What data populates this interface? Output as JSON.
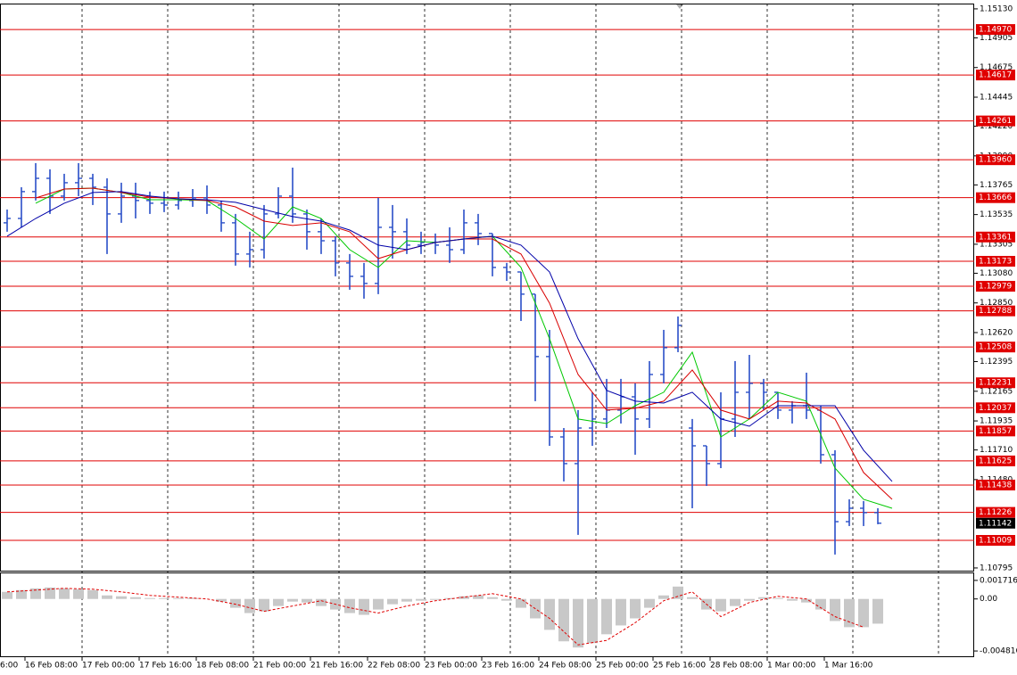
{
  "chart_data": [
    {
      "type": "candlestick",
      "color": "#2a4fc8",
      "x": [
        0,
        1,
        2,
        3,
        4,
        5,
        6,
        7,
        8,
        9,
        10,
        11,
        12,
        13,
        14,
        15,
        16,
        17,
        18,
        19,
        20,
        21,
        22,
        23,
        24,
        25,
        26,
        27,
        28,
        29,
        30,
        31,
        32,
        33,
        34,
        35,
        36,
        37,
        38,
        39,
        40,
        41,
        42,
        43,
        44,
        45,
        46,
        47,
        48,
        49,
        50,
        51,
        52,
        53,
        54,
        55,
        56,
        57,
        58,
        59,
        60,
        61
      ],
      "open": [
        1.13471,
        1.13505,
        1.13713,
        1.13816,
        1.13678,
        1.13782,
        1.13816,
        1.13747,
        1.1354,
        1.13678,
        1.13644,
        1.13623,
        1.13609,
        1.13644,
        1.13664,
        1.13609,
        1.13471,
        1.13229,
        1.13263,
        1.1354,
        1.13678,
        1.1354,
        1.13402,
        1.13332,
        1.1316,
        1.13056,
        1.13001,
        1.13436,
        1.13402,
        1.13298,
        1.13319,
        1.13298,
        1.13263,
        1.13471,
        1.13388,
        1.13125,
        1.1309,
        1.12918,
        1.12434,
        1.11811,
        1.11604,
        1.1188,
        1.1195,
        1.12019,
        1.12122,
        1.1195,
        1.12295,
        1.12503,
        1.1188,
        1.11742,
        1.11604,
        1.1195,
        1.12157,
        1.12226,
        1.12157,
        1.12019,
        1.12053,
        1.12019,
        1.11673,
        1.11154,
        1.11258,
        1.11224
      ],
      "high": [
        1.13574,
        1.13747,
        1.13934,
        1.13886,
        1.13851,
        1.13934,
        1.13851,
        1.13816,
        1.13782,
        1.13782,
        1.13713,
        1.13713,
        1.13713,
        1.13733,
        1.13761,
        1.13644,
        1.1354,
        1.13402,
        1.13609,
        1.13747,
        1.13899,
        1.13574,
        1.13505,
        1.13367,
        1.13229,
        1.1316,
        1.13664,
        1.13609,
        1.13505,
        1.13402,
        1.13388,
        1.13436,
        1.13574,
        1.1354,
        1.13388,
        1.1316,
        1.1309,
        1.12918,
        1.12641,
        1.1188,
        1.12019,
        1.12157,
        1.12261,
        1.12261,
        1.12226,
        1.12399,
        1.12641,
        1.12745,
        1.1195,
        1.11742,
        1.12157,
        1.12399,
        1.12447,
        1.12261,
        1.12157,
        1.12088,
        1.12309,
        1.12053,
        1.11708,
        1.11327,
        1.11314,
        1.11258
      ],
      "low": [
        1.13402,
        1.13436,
        1.13644,
        1.1354,
        1.13644,
        1.13678,
        1.13609,
        1.13229,
        1.13471,
        1.13505,
        1.1354,
        1.13554,
        1.13574,
        1.13595,
        1.1354,
        1.13402,
        1.13139,
        1.13125,
        1.13194,
        1.13505,
        1.13471,
        1.13263,
        1.13229,
        1.13056,
        1.12952,
        1.12883,
        1.12918,
        1.13194,
        1.13229,
        1.13229,
        1.13229,
        1.1316,
        1.13229,
        1.13298,
        1.13056,
        1.13021,
        1.1271,
        1.12088,
        1.11742,
        1.11466,
        1.11051,
        1.11742,
        1.1188,
        1.11915,
        1.11673,
        1.1188,
        1.12226,
        1.12468,
        1.11258,
        1.11431,
        1.11569,
        1.11811,
        1.1195,
        1.12019,
        1.1195,
        1.11915,
        1.1195,
        1.11604,
        1.10899,
        1.1112,
        1.1112,
        1.11134
      ],
      "close": [
        1.13505,
        1.13713,
        1.13816,
        1.13678,
        1.13782,
        1.13816,
        1.13747,
        1.1354,
        1.13678,
        1.13644,
        1.13623,
        1.13609,
        1.13644,
        1.13664,
        1.13609,
        1.13471,
        1.13229,
        1.13263,
        1.1354,
        1.13678,
        1.1354,
        1.13402,
        1.13332,
        1.1316,
        1.13056,
        1.13001,
        1.13436,
        1.13402,
        1.13298,
        1.13319,
        1.13298,
        1.13263,
        1.13471,
        1.13388,
        1.13125,
        1.1309,
        1.12918,
        1.12434,
        1.11811,
        1.11604,
        1.1188,
        1.1195,
        1.12019,
        1.12122,
        1.1195,
        1.12295,
        1.12503,
        1.12676,
        1.11742,
        1.11604,
        1.1195,
        1.12157,
        1.12226,
        1.12157,
        1.12019,
        1.12053,
        1.12019,
        1.11673,
        1.11154,
        1.11258,
        1.11224,
        1.11142
      ],
      "series": [
        {
          "color": "#00c800",
          "x": [
            2,
            4,
            6,
            8,
            10,
            12,
            14,
            16,
            18,
            20,
            22,
            24,
            26,
            28,
            30,
            32,
            34,
            36,
            38,
            40,
            42,
            44,
            46,
            48,
            50,
            52,
            54,
            56,
            58,
            60,
            62
          ],
          "values": [
            1.13623,
            1.13733,
            1.1374,
            1.13706,
            1.1365,
            1.1365,
            1.13644,
            1.13505,
            1.13346,
            1.13595,
            1.13505,
            1.13263,
            1.13125,
            1.13332,
            1.13319,
            1.13346,
            1.13367,
            1.13125,
            1.12572,
            1.1195,
            1.11915,
            1.12053,
            1.12157,
            1.12468,
            1.11811,
            1.1195,
            1.12157,
            1.12088,
            1.11569,
            1.11327,
            1.11258
          ]
        },
        {
          "color": "#d80000",
          "x": [
            2,
            4,
            6,
            8,
            10,
            12,
            14,
            16,
            18,
            20,
            22,
            24,
            26,
            28,
            30,
            32,
            34,
            36,
            38,
            40,
            42,
            44,
            46,
            48,
            50,
            52,
            54,
            56,
            58,
            60,
            62
          ],
          "values": [
            1.13664,
            1.13733,
            1.1374,
            1.13706,
            1.13671,
            1.13657,
            1.13644,
            1.13595,
            1.13484,
            1.1345,
            1.13471,
            1.13402,
            1.13194,
            1.13263,
            1.13319,
            1.13346,
            1.13346,
            1.13229,
            1.12848,
            1.12295,
            1.12019,
            1.12033,
            1.12088,
            1.1233,
            1.12019,
            1.1195,
            1.12088,
            1.12074,
            1.1195,
            1.11535,
            1.11327
          ]
        },
        {
          "color": "#0000a8",
          "x": [
            0,
            2,
            4,
            6,
            8,
            10,
            12,
            14,
            16,
            18,
            20,
            22,
            24,
            26,
            28,
            30,
            32,
            34,
            36,
            38,
            40,
            42,
            44,
            46,
            48,
            50,
            52,
            54,
            56,
            58,
            60,
            62
          ],
          "values": [
            1.13367,
            1.13505,
            1.13623,
            1.13706,
            1.13713,
            1.13678,
            1.13657,
            1.1365,
            1.1363,
            1.13574,
            1.13519,
            1.13484,
            1.13415,
            1.13298,
            1.13263,
            1.13319,
            1.13346,
            1.13367,
            1.13298,
            1.1309,
            1.12572,
            1.12171,
            1.12088,
            1.12074,
            1.12157,
            1.1195,
            1.11894,
            1.12053,
            1.12053,
            1.12053,
            1.11708,
            1.11466
          ]
        }
      ],
      "levels": [
        1.1497,
        1.14617,
        1.14261,
        1.1396,
        1.13666,
        1.13361,
        1.13173,
        1.12979,
        1.12788,
        1.12508,
        1.12231,
        1.12037,
        1.11857,
        1.11625,
        1.11438,
        1.11226,
        1.11009
      ],
      "level_labels": [
        "1.14970",
        "1.14617",
        "1.14261",
        "1.13960",
        "1.13666",
        "1.13361",
        "1.13173",
        "1.12979",
        "1.12788",
        "1.12508",
        "1.12231",
        "1.12037",
        "1.11857",
        "1.11625",
        "1.11438",
        "1.11226",
        "1.11009"
      ],
      "level_color": "#e00000",
      "last_price": 1.11142,
      "ylim": [
        1.10767,
        1.15171
      ],
      "yticks": [
        {
          "value": 1.1513,
          "label": "1.15130"
        },
        1.14905,
        1.14675,
        1.14445,
        {
          "value": 1.1422,
          "label": "1.14220"
        },
        {
          "value": 1.1399,
          "label": "1.13990"
        },
        1.13765,
        1.13535,
        1.13305,
        {
          "value": 1.1308,
          "label": "1.13080"
        },
        {
          "value": 1.1285,
          "label": "1.12850"
        },
        {
          "value": 1.1262,
          "label": "1.12620"
        },
        1.12395,
        1.12165,
        1.11935,
        {
          "value": 1.1171,
          "label": "1.11710"
        },
        {
          "value": 1.1148,
          "label": "1.11480"
        },
        1.10795
      ],
      "xlim": [
        -0.5,
        67.75
      ],
      "xticks": [
        {
          "value": -2.75,
          "label": "6:00"
        },
        {
          "value": 1.25,
          "label": "16 Feb 08:00"
        },
        {
          "value": 5.25,
          "label": "17 Feb 00:00"
        },
        {
          "value": 9.25,
          "label": "17 Feb 16:00"
        },
        {
          "value": 13.25,
          "label": "18 Feb 08:00"
        },
        {
          "value": 17.25,
          "label": "21 Feb 00:00"
        },
        {
          "value": 21.25,
          "label": "21 Feb 16:00"
        },
        {
          "value": 25.25,
          "label": "22 Feb 08:00"
        },
        {
          "value": 29.25,
          "label": "23 Feb 00:00"
        },
        {
          "value": 33.25,
          "label": "23 Feb 16:00"
        },
        {
          "value": 37.25,
          "label": "24 Feb 08:00"
        },
        {
          "value": 41.25,
          "label": "25 Feb 00:00"
        },
        {
          "value": 45.25,
          "label": "25 Feb 16:00"
        },
        {
          "value": 49.25,
          "label": "28 Feb 08:00"
        },
        {
          "value": 53.25,
          "label": "1 Mar 00:00"
        },
        {
          "value": 57.25,
          "label": "1 Mar 16:00"
        }
      ],
      "xgrid": [
        5.25,
        11.25,
        17.25,
        23.25,
        29.25,
        35.25,
        41.25,
        47.25,
        53.25,
        59.25,
        65.25
      ]
    },
    {
      "type": "bar",
      "color": "#c8c8c8",
      "x": [
        0,
        1,
        2,
        3,
        4,
        5,
        6,
        7,
        8,
        9,
        10,
        11,
        12,
        13,
        14,
        15,
        16,
        17,
        18,
        19,
        20,
        21,
        22,
        23,
        24,
        25,
        26,
        27,
        28,
        29,
        30,
        31,
        32,
        33,
        34,
        35,
        36,
        37,
        38,
        39,
        40,
        41,
        42,
        43,
        44,
        45,
        46,
        47,
        48,
        49,
        50,
        51,
        52,
        53,
        54,
        55,
        56,
        57,
        58,
        59,
        60,
        61
      ],
      "values": [
        0.000654,
        0.000817,
        0.00098,
        0.001062,
        0.00098,
        0.000899,
        0.000817,
        0.000327,
        0.000245,
        0.000163,
        8.2e-05,
        8.2e-05,
        8.2e-05,
        8.2e-05,
        0,
        -0.000245,
        -0.000817,
        -0.001307,
        -0.001144,
        -0.000654,
        -0.000245,
        -0.000327,
        -0.000654,
        -0.00098,
        -0.001307,
        -0.001471,
        -0.00098,
        -0.00049,
        -0.000245,
        -0.000163,
        -8.2e-05,
        8.2e-05,
        0.000245,
        0.000327,
        0.000163,
        -0.000163,
        -0.000817,
        -0.001797,
        -0.00286,
        -0.003922,
        -0.004494,
        -0.004085,
        -0.003268,
        -0.002451,
        -0.001797,
        -0.000817,
        0.000327,
        0.001144,
        0.000163,
        -0.00098,
        -0.001144,
        -0.000654,
        -0.000163,
        0.000163,
        8.2e-05,
        -0.000163,
        -0.000327,
        -0.00098,
        -0.002043,
        -0.002614,
        -0.002614,
        -0.002288
      ],
      "series": [
        {
          "color": "#e00000",
          "dashed": true,
          "x": [
            0,
            2,
            4,
            6,
            8,
            10,
            12,
            14,
            16,
            18,
            20,
            22,
            24,
            26,
            28,
            30,
            32,
            34,
            36,
            38,
            40,
            42,
            44,
            46,
            48,
            50,
            52,
            54,
            56,
            58,
            60
          ],
          "values": [
            0.000654,
            0.000817,
            0.00098,
            0.000899,
            0.000654,
            0.000327,
            0.000163,
            0,
            -0.00049,
            -0.001144,
            -0.000654,
            -0.000163,
            -0.000817,
            -0.001307,
            -0.000654,
            -0.000163,
            0.000163,
            0.00049,
            0,
            -0.001797,
            -0.004248,
            -0.00384,
            -0.002206,
            -0.000163,
            0.000654,
            -0.001634,
            -0.000327,
            0.000245,
            0,
            -0.001634,
            -0.002614
          ]
        }
      ],
      "ylim": [
        -0.005388,
        0.002369
      ],
      "yticks": [
        0.001716,
        {
          "value": 0,
          "label": "0.00"
        },
        -0.004816
      ],
      "xlim": [
        -0.5,
        67.75
      ]
    }
  ]
}
